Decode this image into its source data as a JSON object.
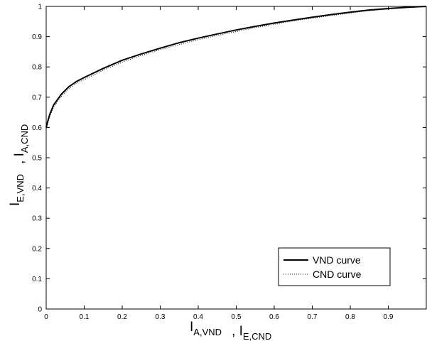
{
  "chart_data": {
    "type": "line",
    "title": "",
    "xlabel": {
      "parts": [
        {
          "main": "I",
          "sub": "A,VND"
        },
        {
          "sep": ","
        },
        {
          "main": "I",
          "sub": "E,CND"
        }
      ]
    },
    "ylabel": {
      "parts": [
        {
          "main": "I",
          "sub": "E,VND"
        },
        {
          "sep": ","
        },
        {
          "main": "I",
          "sub": "A,CND"
        }
      ]
    },
    "xlim": [
      0,
      1
    ],
    "ylim": [
      0,
      1
    ],
    "xticks": [
      {
        "value": 0,
        "label": "0"
      },
      {
        "value": 0.1,
        "label": "0.1"
      },
      {
        "value": 0.2,
        "label": "0.2"
      },
      {
        "value": 0.3,
        "label": "0.3"
      },
      {
        "value": 0.4,
        "label": "0.4"
      },
      {
        "value": 0.5,
        "label": "0.5"
      },
      {
        "value": 0.6,
        "label": "0.6"
      },
      {
        "value": 0.7,
        "label": "0.7"
      },
      {
        "value": 0.8,
        "label": "0.8"
      },
      {
        "value": 0.9,
        "label": "0.9"
      }
    ],
    "yticks": [
      {
        "value": 0,
        "label": "0"
      },
      {
        "value": 0.1,
        "label": "0.1"
      },
      {
        "value": 0.2,
        "label": "0.2"
      },
      {
        "value": 0.3,
        "label": "0.3"
      },
      {
        "value": 0.4,
        "label": "0.4"
      },
      {
        "value": 0.5,
        "label": "0.5"
      },
      {
        "value": 0.6,
        "label": "0.6"
      },
      {
        "value": 0.7,
        "label": "0.7"
      },
      {
        "value": 0.8,
        "label": "0.8"
      },
      {
        "value": 0.9,
        "label": "0.9"
      },
      {
        "value": 1,
        "label": "1"
      }
    ],
    "grid": false,
    "legend_position": "bottom-right",
    "series": [
      {
        "name": "VND curve",
        "style": "solid",
        "color": "#000000",
        "x": [
          0,
          0.005,
          0.01,
          0.02,
          0.04,
          0.06,
          0.08,
          0.1,
          0.15,
          0.2,
          0.25,
          0.3,
          0.35,
          0.4,
          0.45,
          0.5,
          0.55,
          0.6,
          0.65,
          0.7,
          0.75,
          0.8,
          0.85,
          0.9,
          0.95,
          1.0
        ],
        "y": [
          0.6,
          0.625,
          0.645,
          0.675,
          0.71,
          0.735,
          0.752,
          0.765,
          0.795,
          0.822,
          0.843,
          0.862,
          0.88,
          0.895,
          0.909,
          0.922,
          0.934,
          0.945,
          0.955,
          0.964,
          0.973,
          0.981,
          0.988,
          0.993,
          0.997,
          1.0
        ]
      },
      {
        "name": "CND curve",
        "style": "dotted",
        "color": "#000000",
        "x": [
          0,
          0.005,
          0.01,
          0.02,
          0.04,
          0.06,
          0.08,
          0.1,
          0.15,
          0.2,
          0.25,
          0.3,
          0.35,
          0.4,
          0.45,
          0.5,
          0.55,
          0.6,
          0.65,
          0.7,
          0.75,
          0.8,
          0.85,
          0.9,
          0.95,
          1.0
        ],
        "y": [
          0.595,
          0.618,
          0.638,
          0.668,
          0.703,
          0.728,
          0.746,
          0.758,
          0.789,
          0.816,
          0.838,
          0.857,
          0.874,
          0.89,
          0.904,
          0.917,
          0.93,
          0.941,
          0.952,
          0.961,
          0.97,
          0.978,
          0.986,
          0.991,
          0.996,
          1.0
        ]
      }
    ]
  }
}
